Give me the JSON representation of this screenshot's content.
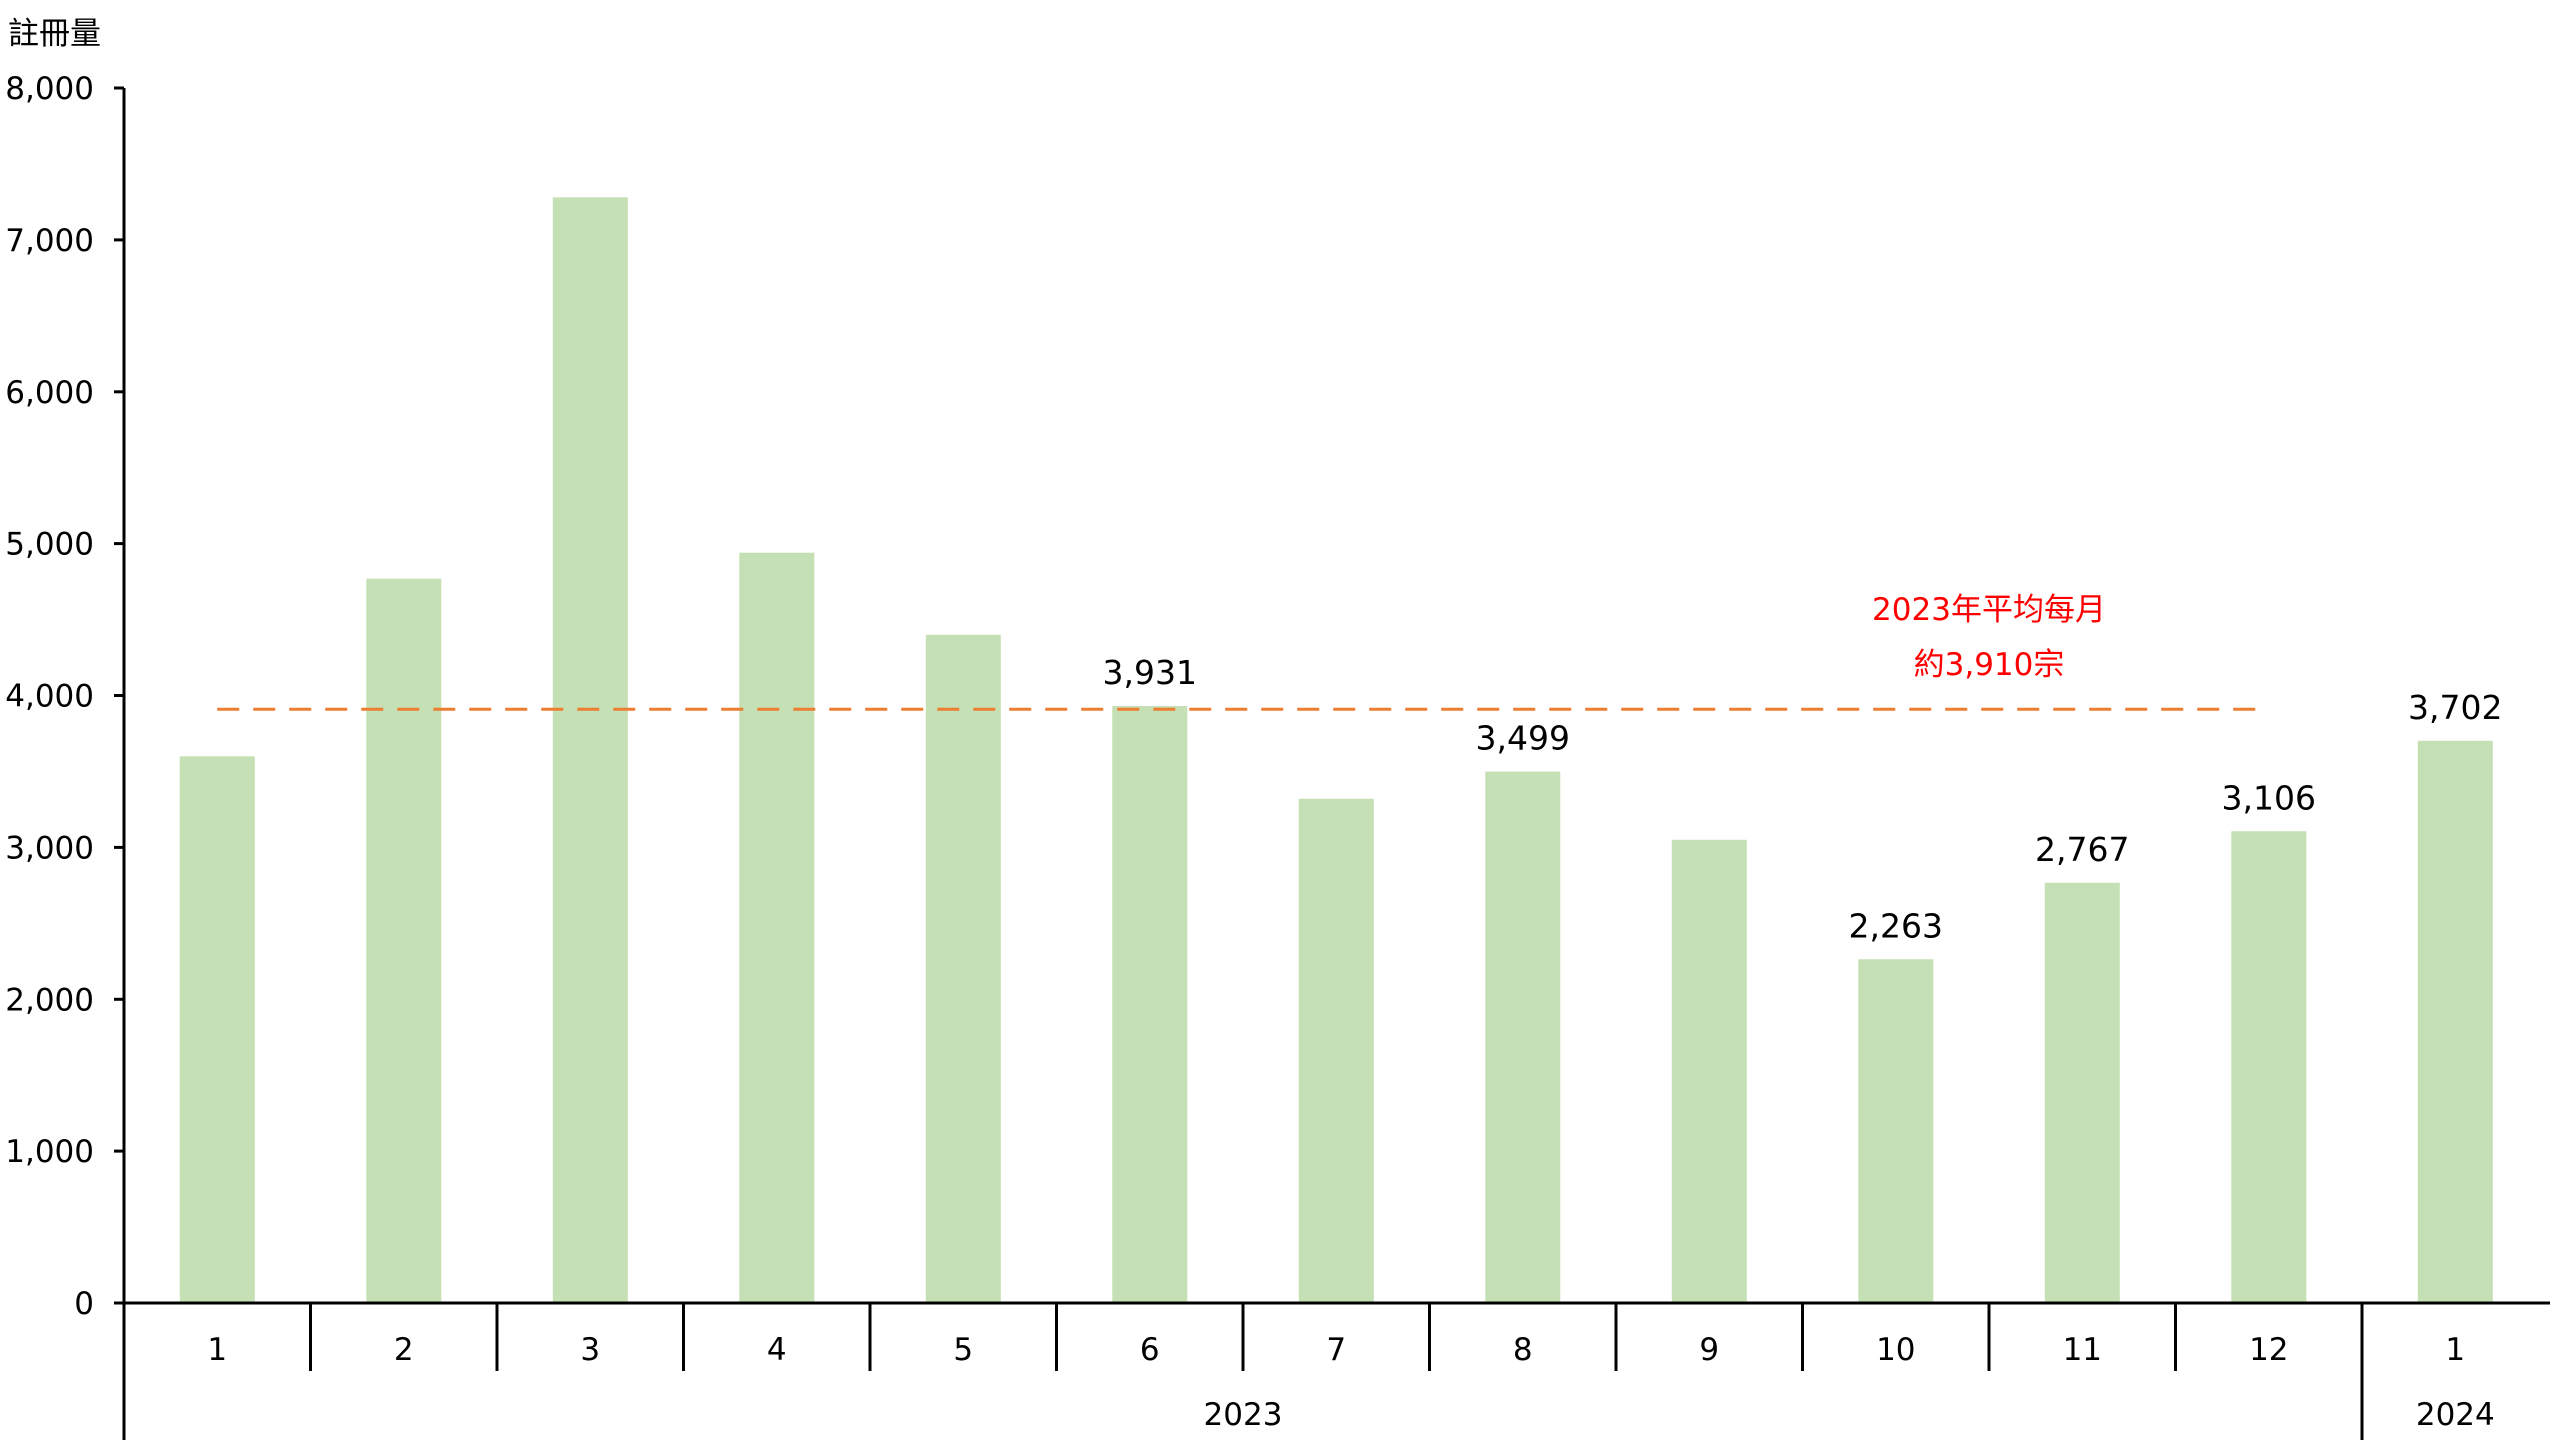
{
  "chart_data": {
    "type": "bar",
    "ylabel": "註冊量",
    "xlabel": "",
    "title": "",
    "ylim": [
      0,
      8000
    ],
    "yticks": [
      0,
      1000,
      2000,
      3000,
      4000,
      5000,
      6000,
      7000,
      8000
    ],
    "ytick_labels": [
      "0",
      "1,000",
      "2,000",
      "3,000",
      "4,000",
      "5,000",
      "6,000",
      "7,000",
      "8,000"
    ],
    "categories": [
      "1",
      "2",
      "3",
      "4",
      "5",
      "6",
      "7",
      "8",
      "9",
      "10",
      "11",
      "12",
      "1"
    ],
    "year_groups": [
      {
        "label": "2023",
        "from": 0,
        "to": 11
      },
      {
        "label": "2024",
        "from": 12,
        "to": 12
      }
    ],
    "values": [
      3600,
      4770,
      7280,
      4940,
      4400,
      3931,
      3320,
      3499,
      3050,
      2263,
      2767,
      3106,
      3702
    ],
    "data_labels": [
      null,
      null,
      null,
      null,
      null,
      "3,931",
      null,
      "3,499",
      null,
      "2,263",
      "2,767",
      "3,106",
      "3,702"
    ],
    "bar_color": "#c5e0b4",
    "grid": false,
    "reference_line": {
      "value": 3910,
      "from_index": 0,
      "to_index": 11,
      "style": "dashed",
      "color": "#ed7d31",
      "annotation": [
        "2023年平均每月",
        "約3,910宗"
      ],
      "annotation_color": "#ff0000"
    }
  }
}
